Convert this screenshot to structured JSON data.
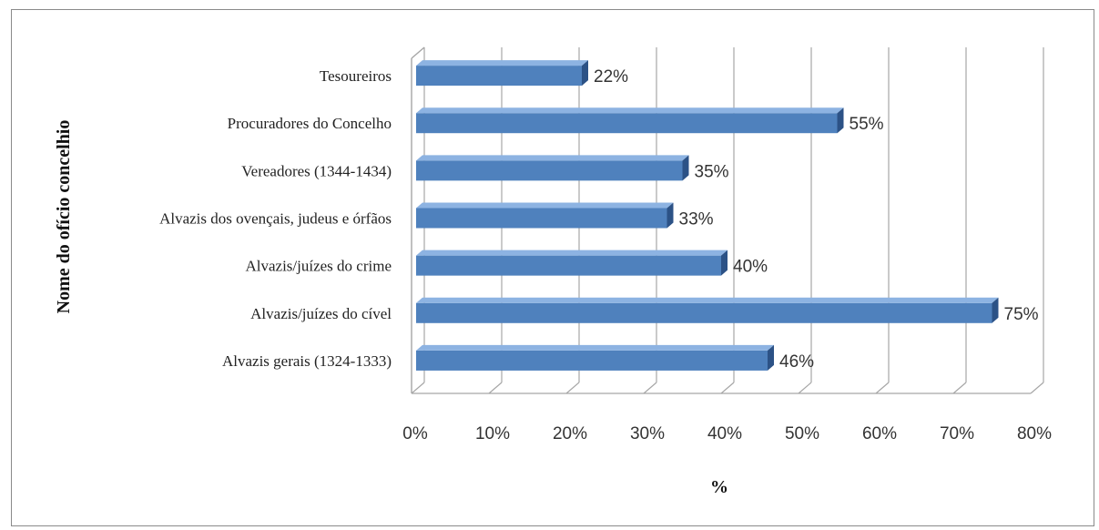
{
  "chart_data": {
    "type": "bar",
    "orientation": "horizontal",
    "categories": [
      "Tesoureiros",
      "Procuradores do Concelho",
      "Vereadores (1344-1434)",
      "Alvazis dos ovençais, judeus e órfãos",
      "Alvazis/juízes do crime",
      "Alvazis/juízes do cível",
      "Alvazis gerais (1324-1333)"
    ],
    "values": [
      22,
      55,
      35,
      33,
      40,
      75,
      46
    ],
    "data_labels": [
      "22%",
      "55%",
      "35%",
      "33%",
      "40%",
      "75%",
      "46%"
    ],
    "xlabel": "%",
    "ylabel": "Nome do ofício concelhio",
    "xlim": [
      0,
      80
    ],
    "xticks": [
      "0%",
      "10%",
      "20%",
      "30%",
      "40%",
      "50%",
      "60%",
      "70%",
      "80%"
    ],
    "grid": true,
    "legend": "none",
    "style": "3d",
    "colors": {
      "bar_front": "#4f81bd",
      "bar_top": "#8db3e2",
      "bar_side": "#2c5286",
      "gridline": "#a6a6a6"
    }
  }
}
